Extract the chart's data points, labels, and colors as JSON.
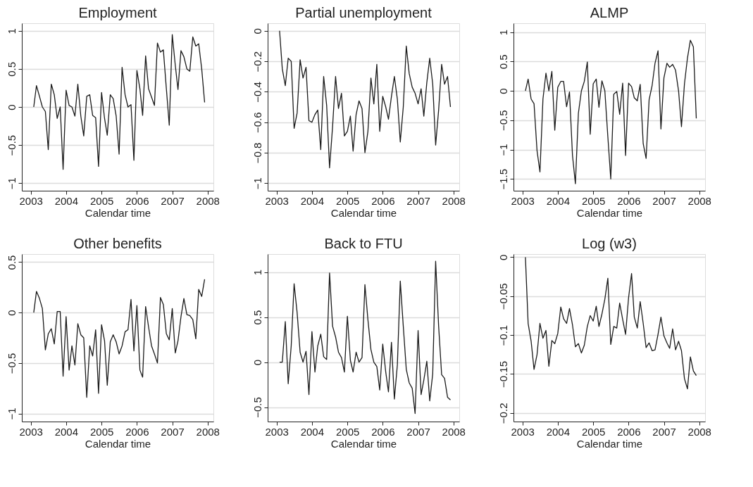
{
  "chart_data": [
    {
      "type": "line",
      "title": "Employment",
      "xlabel": "Calendar time",
      "grid": "y",
      "color": "#1a1a1a",
      "x": [
        "2003-02",
        "2003-03",
        "2003-04",
        "2003-05",
        "2003-06",
        "2003-07",
        "2003-08",
        "2003-09",
        "2003-10",
        "2003-11",
        "2003-12",
        "2004-01",
        "2004-02",
        "2004-03",
        "2004-04",
        "2004-05",
        "2004-06",
        "2004-07",
        "2004-08",
        "2004-09",
        "2004-10",
        "2004-11",
        "2004-12",
        "2005-01",
        "2005-02",
        "2005-03",
        "2005-04",
        "2005-05",
        "2005-06",
        "2005-07",
        "2005-08",
        "2005-09",
        "2005-10",
        "2005-11",
        "2005-12",
        "2006-01",
        "2006-02",
        "2006-03",
        "2006-04",
        "2006-05",
        "2006-06",
        "2006-07",
        "2006-08",
        "2006-09",
        "2006-10",
        "2006-11",
        "2006-12",
        "2007-01",
        "2007-02",
        "2007-03",
        "2007-04",
        "2007-05",
        "2007-06",
        "2007-07",
        "2007-08",
        "2007-09",
        "2007-10",
        "2007-11",
        "2007-12"
      ],
      "values": [
        0,
        0.28,
        0.14,
        0.0,
        -0.06,
        -0.56,
        0.3,
        0.16,
        -0.15,
        0.0,
        -0.82,
        0.22,
        0.02,
        0.0,
        -0.12,
        0.3,
        -0.12,
        -0.38,
        0.14,
        0.16,
        -0.11,
        -0.14,
        -0.78,
        0.19,
        -0.15,
        -0.37,
        0.16,
        0.11,
        -0.12,
        -0.62,
        0.52,
        0.16,
        0.0,
        0.03,
        -0.7,
        0.48,
        0.24,
        -0.11,
        0.67,
        0.24,
        0.13,
        0.02,
        0.84,
        0.72,
        0.75,
        0.24,
        -0.24,
        0.95,
        0.55,
        0.23,
        0.74,
        0.66,
        0.5,
        0.47,
        0.92,
        0.8,
        0.83,
        0.5,
        0.06
      ],
      "xlim": [
        "2002-10",
        "2008-03"
      ],
      "xticks": [
        "2003",
        "2004",
        "2005",
        "2006",
        "2007",
        "2008"
      ],
      "ylim": [
        -1.1,
        1.1
      ],
      "yticks": [
        -1,
        -0.5,
        0,
        0.5,
        1
      ]
    },
    {
      "type": "line",
      "title": "Partial unemployment",
      "xlabel": "Calendar time",
      "grid": "y",
      "color": "#1a1a1a",
      "x": [
        "2003-02",
        "2003-03",
        "2003-04",
        "2003-05",
        "2003-06",
        "2003-07",
        "2003-08",
        "2003-09",
        "2003-10",
        "2003-11",
        "2003-12",
        "2004-01",
        "2004-02",
        "2004-03",
        "2004-04",
        "2004-05",
        "2004-06",
        "2004-07",
        "2004-08",
        "2004-09",
        "2004-10",
        "2004-11",
        "2004-12",
        "2005-01",
        "2005-02",
        "2005-03",
        "2005-04",
        "2005-05",
        "2005-06",
        "2005-07",
        "2005-08",
        "2005-09",
        "2005-10",
        "2005-11",
        "2005-12",
        "2006-01",
        "2006-02",
        "2006-03",
        "2006-04",
        "2006-05",
        "2006-06",
        "2006-07",
        "2006-08",
        "2006-09",
        "2006-10",
        "2006-11",
        "2006-12",
        "2007-01",
        "2007-02",
        "2007-03",
        "2007-04",
        "2007-05",
        "2007-06",
        "2007-07",
        "2007-08",
        "2007-09",
        "2007-10",
        "2007-11",
        "2007-12"
      ],
      "values": [
        0,
        -0.25,
        -0.36,
        -0.18,
        -0.2,
        -0.64,
        -0.54,
        -0.19,
        -0.31,
        -0.24,
        -0.59,
        -0.6,
        -0.55,
        -0.52,
        -0.78,
        -0.3,
        -0.49,
        -0.9,
        -0.63,
        -0.3,
        -0.51,
        -0.41,
        -0.69,
        -0.66,
        -0.56,
        -0.79,
        -0.55,
        -0.46,
        -0.51,
        -0.8,
        -0.66,
        -0.31,
        -0.48,
        -0.22,
        -0.66,
        -0.43,
        -0.5,
        -0.58,
        -0.43,
        -0.3,
        -0.45,
        -0.73,
        -0.5,
        -0.1,
        -0.28,
        -0.37,
        -0.41,
        -0.48,
        -0.38,
        -0.56,
        -0.34,
        -0.18,
        -0.35,
        -0.75,
        -0.52,
        -0.22,
        -0.35,
        -0.3,
        -0.5
      ],
      "xlim": [
        "2002-10",
        "2008-03"
      ],
      "xticks": [
        "2003",
        "2004",
        "2005",
        "2006",
        "2007",
        "2008"
      ],
      "ylim": [
        -1.05,
        0.05
      ],
      "yticks": [
        -1,
        -0.8,
        -0.6,
        -0.4,
        -0.2,
        0
      ]
    },
    {
      "type": "line",
      "title": "ALMP",
      "xlabel": "Calendar time",
      "grid": "y",
      "color": "#1a1a1a",
      "x": [
        "2003-02",
        "2003-03",
        "2003-04",
        "2003-05",
        "2003-06",
        "2003-07",
        "2003-08",
        "2003-09",
        "2003-10",
        "2003-11",
        "2003-12",
        "2004-01",
        "2004-02",
        "2004-03",
        "2004-04",
        "2004-05",
        "2004-06",
        "2004-07",
        "2004-08",
        "2004-09",
        "2004-10",
        "2004-11",
        "2004-12",
        "2005-01",
        "2005-02",
        "2005-03",
        "2005-04",
        "2005-05",
        "2005-06",
        "2005-07",
        "2005-08",
        "2005-09",
        "2005-10",
        "2005-11",
        "2005-12",
        "2006-01",
        "2006-02",
        "2006-03",
        "2006-04",
        "2006-05",
        "2006-06",
        "2006-07",
        "2006-08",
        "2006-09",
        "2006-10",
        "2006-11",
        "2006-12",
        "2007-01",
        "2007-02",
        "2007-03",
        "2007-04",
        "2007-05",
        "2007-06",
        "2007-07",
        "2007-08",
        "2007-09",
        "2007-10",
        "2007-11",
        "2007-12"
      ],
      "values": [
        0,
        0.2,
        -0.14,
        -0.22,
        -1.02,
        -1.38,
        -0.14,
        0.3,
        0.0,
        0.33,
        -0.67,
        0.06,
        0.16,
        0.16,
        -0.27,
        -0.02,
        -1.1,
        -1.58,
        -0.38,
        0.0,
        0.16,
        0.49,
        -0.74,
        0.12,
        0.2,
        -0.28,
        0.17,
        0.0,
        -0.78,
        -1.5,
        -0.06,
        -0.01,
        -0.4,
        0.13,
        -1.1,
        0.13,
        0.07,
        -0.12,
        -0.17,
        0.11,
        -0.9,
        -1.15,
        -0.15,
        0.09,
        0.47,
        0.68,
        -0.65,
        0.22,
        0.47,
        0.4,
        0.45,
        0.35,
        0.0,
        -0.61,
        0.12,
        0.56,
        0.86,
        0.75,
        -0.47
      ],
      "xlim": [
        "2002-10",
        "2008-03"
      ],
      "xticks": [
        "2003",
        "2004",
        "2005",
        "2006",
        "2007",
        "2008"
      ],
      "ylim": [
        -1.7,
        1.15
      ],
      "yticks": [
        -1.5,
        -1,
        -0.5,
        0,
        0.5,
        1
      ]
    },
    {
      "type": "line",
      "title": "Other benefits",
      "xlabel": "Calendar time",
      "grid": "y",
      "color": "#1a1a1a",
      "x": [
        "2003-02",
        "2003-03",
        "2003-04",
        "2003-05",
        "2003-06",
        "2003-07",
        "2003-08",
        "2003-09",
        "2003-10",
        "2003-11",
        "2003-12",
        "2004-01",
        "2004-02",
        "2004-03",
        "2004-04",
        "2004-05",
        "2004-06",
        "2004-07",
        "2004-08",
        "2004-09",
        "2004-10",
        "2004-11",
        "2004-12",
        "2005-01",
        "2005-02",
        "2005-03",
        "2005-04",
        "2005-05",
        "2005-06",
        "2005-07",
        "2005-08",
        "2005-09",
        "2005-10",
        "2005-11",
        "2005-12",
        "2006-01",
        "2006-02",
        "2006-03",
        "2006-04",
        "2006-05",
        "2006-06",
        "2006-07",
        "2006-08",
        "2006-09",
        "2006-10",
        "2006-11",
        "2006-12",
        "2007-01",
        "2007-02",
        "2007-03",
        "2007-04",
        "2007-05",
        "2007-06",
        "2007-07",
        "2007-08",
        "2007-09",
        "2007-10",
        "2007-11",
        "2007-12"
      ],
      "values": [
        0,
        0.21,
        0.14,
        0.04,
        -0.37,
        -0.21,
        -0.16,
        -0.31,
        0.01,
        0.01,
        -0.63,
        -0.04,
        -0.57,
        -0.33,
        -0.52,
        -0.11,
        -0.22,
        -0.25,
        -0.84,
        -0.33,
        -0.43,
        -0.17,
        -0.8,
        -0.12,
        -0.28,
        -0.72,
        -0.29,
        -0.22,
        -0.29,
        -0.41,
        -0.33,
        -0.19,
        -0.17,
        0.13,
        -0.38,
        0.07,
        -0.57,
        -0.64,
        0.06,
        -0.14,
        -0.33,
        -0.41,
        -0.5,
        0.15,
        0.08,
        -0.21,
        -0.27,
        0.04,
        -0.4,
        -0.28,
        -0.04,
        0.14,
        -0.02,
        -0.03,
        -0.07,
        -0.26,
        0.23,
        0.16,
        0.33
      ],
      "xlim": [
        "2002-10",
        "2008-03"
      ],
      "xticks": [
        "2003",
        "2004",
        "2005",
        "2006",
        "2007",
        "2008"
      ],
      "ylim": [
        -1.08,
        0.58
      ],
      "yticks": [
        -1,
        -0.5,
        0,
        0.5
      ]
    },
    {
      "type": "line",
      "title": "Back to FTU",
      "xlabel": "Calendar time",
      "grid": "y",
      "color": "#1a1a1a",
      "x": [
        "2003-02",
        "2003-03",
        "2003-04",
        "2003-05",
        "2003-06",
        "2003-07",
        "2003-08",
        "2003-09",
        "2003-10",
        "2003-11",
        "2003-12",
        "2004-01",
        "2004-02",
        "2004-03",
        "2004-04",
        "2004-05",
        "2004-06",
        "2004-07",
        "2004-08",
        "2004-09",
        "2004-10",
        "2004-11",
        "2004-12",
        "2005-01",
        "2005-02",
        "2005-03",
        "2005-04",
        "2005-05",
        "2005-06",
        "2005-07",
        "2005-08",
        "2005-09",
        "2005-10",
        "2005-11",
        "2005-12",
        "2006-01",
        "2006-02",
        "2006-03",
        "2006-04",
        "2006-05",
        "2006-06",
        "2006-07",
        "2006-08",
        "2006-09",
        "2006-10",
        "2006-11",
        "2006-12",
        "2007-01",
        "2007-02",
        "2007-03",
        "2007-04",
        "2007-05",
        "2007-06",
        "2007-07",
        "2007-08",
        "2007-09",
        "2007-10",
        "2007-11",
        "2007-12"
      ],
      "values": [
        0,
        0,
        0.45,
        -0.24,
        0.18,
        0.87,
        0.55,
        0.11,
        0.0,
        0.12,
        -0.36,
        0.34,
        -0.11,
        0.18,
        0.31,
        0.06,
        0.03,
        0.99,
        0.4,
        0.28,
        0.11,
        0.05,
        -0.11,
        0.51,
        0.02,
        -0.11,
        0.11,
        0.0,
        0.05,
        0.86,
        0.47,
        0.14,
        0.0,
        -0.05,
        -0.31,
        0.2,
        -0.11,
        -0.33,
        0.22,
        -0.41,
        -0.03,
        0.9,
        0.4,
        -0.08,
        -0.23,
        -0.29,
        -0.57,
        0.35,
        -0.36,
        -0.2,
        0.01,
        -0.43,
        -0.13,
        1.12,
        0.4,
        -0.14,
        -0.18,
        -0.39,
        -0.42
      ],
      "xlim": [
        "2002-10",
        "2008-03"
      ],
      "xticks": [
        "2003",
        "2004",
        "2005",
        "2006",
        "2007",
        "2008"
      ],
      "ylim": [
        -0.66,
        1.2
      ],
      "yticks": [
        -0.5,
        0,
        0.5,
        1
      ]
    },
    {
      "type": "line",
      "title": "Log (w3)",
      "xlabel": "Calendar time",
      "grid": "y",
      "color": "#1a1a1a",
      "x": [
        "2003-02",
        "2003-03",
        "2003-04",
        "2003-05",
        "2003-06",
        "2003-07",
        "2003-08",
        "2003-09",
        "2003-10",
        "2003-11",
        "2003-12",
        "2004-01",
        "2004-02",
        "2004-03",
        "2004-04",
        "2004-05",
        "2004-06",
        "2004-07",
        "2004-08",
        "2004-09",
        "2004-10",
        "2004-11",
        "2004-12",
        "2005-01",
        "2005-02",
        "2005-03",
        "2005-04",
        "2005-05",
        "2005-06",
        "2005-07",
        "2005-08",
        "2005-09",
        "2005-10",
        "2005-11",
        "2005-12",
        "2006-01",
        "2006-02",
        "2006-03",
        "2006-04",
        "2006-05",
        "2006-06",
        "2006-07",
        "2006-08",
        "2006-09",
        "2006-10",
        "2006-11",
        "2006-12",
        "2007-01",
        "2007-02",
        "2007-03",
        "2007-04",
        "2007-05",
        "2007-06",
        "2007-07",
        "2007-08",
        "2007-09",
        "2007-10",
        "2007-11",
        "2007-12"
      ],
      "values": [
        0,
        -0.085,
        -0.108,
        -0.144,
        -0.125,
        -0.085,
        -0.104,
        -0.094,
        -0.14,
        -0.107,
        -0.111,
        -0.098,
        -0.064,
        -0.079,
        -0.085,
        -0.066,
        -0.087,
        -0.115,
        -0.111,
        -0.123,
        -0.113,
        -0.089,
        -0.075,
        -0.082,
        -0.063,
        -0.089,
        -0.073,
        -0.054,
        -0.027,
        -0.112,
        -0.089,
        -0.091,
        -0.059,
        -0.08,
        -0.099,
        -0.052,
        -0.021,
        -0.077,
        -0.091,
        -0.057,
        -0.085,
        -0.116,
        -0.11,
        -0.12,
        -0.119,
        -0.099,
        -0.077,
        -0.101,
        -0.11,
        -0.117,
        -0.092,
        -0.119,
        -0.108,
        -0.12,
        -0.156,
        -0.169,
        -0.128,
        -0.146,
        -0.152
      ],
      "xlim": [
        "2002-10",
        "2008-03"
      ],
      "xticks": [
        "2003",
        "2004",
        "2005",
        "2006",
        "2007",
        "2008"
      ],
      "ylim": [
        -0.211,
        0.004
      ],
      "yticks": [
        -0.2,
        -0.15,
        -0.1,
        -0.05,
        0
      ]
    }
  ]
}
